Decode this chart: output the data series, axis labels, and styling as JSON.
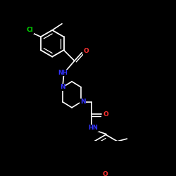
{
  "background": "#000000",
  "bond_color": "#ffffff",
  "atom_colors": {
    "Cl": "#00dd00",
    "O": "#ff3333",
    "N": "#3333ff",
    "C": "#ffffff"
  }
}
